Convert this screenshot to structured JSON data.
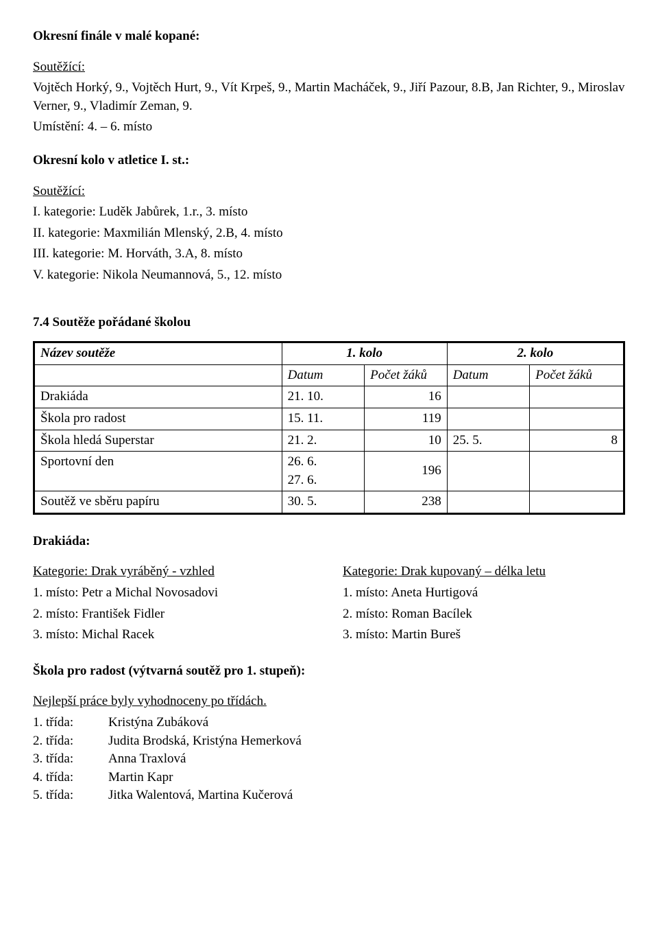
{
  "section1": {
    "title": "Okresní finále v malé kopané:",
    "competitors_label": "Soutěžící:",
    "competitors": "Vojtěch Horký, 9., Vojtěch Hurt, 9., Vít Krpeš, 9., Martin Macháček, 9., Jiří Pazour, 8.B, Jan Richter, 9., Miroslav Verner, 9., Vladimír Zeman, 9.",
    "placement": "Umístění: 4. – 6. místo"
  },
  "section2": {
    "title": "Okresní kolo v atletice I. st.:",
    "competitors_label": "Soutěžící:",
    "lines": [
      "I. kategorie: Luděk Jabůrek, 1.r., 3. místo",
      "II. kategorie: Maxmilián Mlenský, 2.B, 4. místo",
      "III. kategorie: M. Horváth, 3.A, 8. místo",
      "V. kategorie: Nikola Neumannová, 5., 12. místo"
    ]
  },
  "section3": {
    "title": "7.4 Soutěže pořádané školou",
    "headers": {
      "name": "Název soutěže",
      "round1": "1. kolo",
      "round2": "2. kolo",
      "date": "Datum",
      "count": "Počet žáků",
      "count_short": "Počet žáků"
    },
    "rows": [
      {
        "name": "Drakiáda",
        "d1": "21. 10.",
        "c1": "16",
        "d2": "",
        "c2": ""
      },
      {
        "name": "Škola pro radost",
        "d1": "15. 11.",
        "c1": "119",
        "d2": "",
        "c2": ""
      },
      {
        "name": "Škola hledá Superstar",
        "d1": "21. 2.",
        "c1": "10",
        "d2": "25. 5.",
        "c2": "8"
      },
      {
        "name": "Sportovní den",
        "d1": "26. 6.\n27. 6.",
        "c1": "196",
        "d2": "",
        "c2": ""
      },
      {
        "name": "Soutěž ve sběru papíru",
        "d1": "30. 5.",
        "c1": "238",
        "d2": "",
        "c2": ""
      }
    ]
  },
  "drakiada": {
    "title": "Drakiáda:",
    "left": {
      "heading": "Kategorie: Drak vyráběný - vzhled",
      "lines": [
        "1. místo: Petr a Michal Novosadovi",
        "2. místo: František Fidler",
        "3. místo: Michal Racek"
      ]
    },
    "right": {
      "heading": "Kategorie: Drak kupovaný – délka letu",
      "lines": [
        "1. místo: Aneta Hurtigová",
        "2. místo: Roman Bacílek",
        "3. místo: Martin Bureš"
      ]
    }
  },
  "skola_radost": {
    "title": "Škola pro radost (výtvarná soutěž pro 1. stupeň):",
    "intro": "Nejlepší práce byly vyhodnoceny po třídách.",
    "classes": [
      {
        "label": "1. třída:",
        "names": "Kristýna Zubáková"
      },
      {
        "label": "2. třída:",
        "names": "Judita Brodská, Kristýna Hemerková"
      },
      {
        "label": "3. třída:",
        "names": "Anna Traxlová"
      },
      {
        "label": "4. třída:",
        "names": "Martin Kapr"
      },
      {
        "label": "5. třída:",
        "names": "Jitka Walentová, Martina Kučerová"
      }
    ]
  }
}
